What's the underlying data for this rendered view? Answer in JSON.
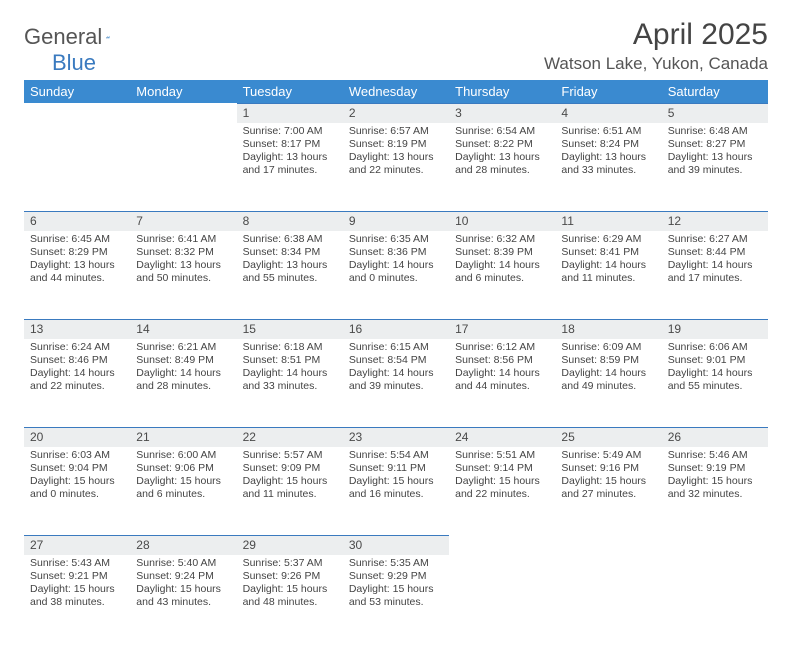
{
  "brand": {
    "name_a": "General",
    "name_b": "Blue"
  },
  "title": "April 2025",
  "location": "Watson Lake, Yukon, Canada",
  "colors": {
    "header_bg": "#3a8ad0",
    "header_text": "#ffffff",
    "daynum_bg": "#eceeef",
    "daynum_border": "#3a7abf",
    "text": "#444444",
    "brand_gray": "#6a6a6a",
    "brand_blue": "#3a7abf"
  },
  "weekdays": [
    "Sunday",
    "Monday",
    "Tuesday",
    "Wednesday",
    "Thursday",
    "Friday",
    "Saturday"
  ],
  "weeks": [
    [
      null,
      null,
      {
        "n": "1",
        "sr": "7:00 AM",
        "ss": "8:17 PM",
        "dl": "13 hours and 17 minutes."
      },
      {
        "n": "2",
        "sr": "6:57 AM",
        "ss": "8:19 PM",
        "dl": "13 hours and 22 minutes."
      },
      {
        "n": "3",
        "sr": "6:54 AM",
        "ss": "8:22 PM",
        "dl": "13 hours and 28 minutes."
      },
      {
        "n": "4",
        "sr": "6:51 AM",
        "ss": "8:24 PM",
        "dl": "13 hours and 33 minutes."
      },
      {
        "n": "5",
        "sr": "6:48 AM",
        "ss": "8:27 PM",
        "dl": "13 hours and 39 minutes."
      }
    ],
    [
      {
        "n": "6",
        "sr": "6:45 AM",
        "ss": "8:29 PM",
        "dl": "13 hours and 44 minutes."
      },
      {
        "n": "7",
        "sr": "6:41 AM",
        "ss": "8:32 PM",
        "dl": "13 hours and 50 minutes."
      },
      {
        "n": "8",
        "sr": "6:38 AM",
        "ss": "8:34 PM",
        "dl": "13 hours and 55 minutes."
      },
      {
        "n": "9",
        "sr": "6:35 AM",
        "ss": "8:36 PM",
        "dl": "14 hours and 0 minutes."
      },
      {
        "n": "10",
        "sr": "6:32 AM",
        "ss": "8:39 PM",
        "dl": "14 hours and 6 minutes."
      },
      {
        "n": "11",
        "sr": "6:29 AM",
        "ss": "8:41 PM",
        "dl": "14 hours and 11 minutes."
      },
      {
        "n": "12",
        "sr": "6:27 AM",
        "ss": "8:44 PM",
        "dl": "14 hours and 17 minutes."
      }
    ],
    [
      {
        "n": "13",
        "sr": "6:24 AM",
        "ss": "8:46 PM",
        "dl": "14 hours and 22 minutes."
      },
      {
        "n": "14",
        "sr": "6:21 AM",
        "ss": "8:49 PM",
        "dl": "14 hours and 28 minutes."
      },
      {
        "n": "15",
        "sr": "6:18 AM",
        "ss": "8:51 PM",
        "dl": "14 hours and 33 minutes."
      },
      {
        "n": "16",
        "sr": "6:15 AM",
        "ss": "8:54 PM",
        "dl": "14 hours and 39 minutes."
      },
      {
        "n": "17",
        "sr": "6:12 AM",
        "ss": "8:56 PM",
        "dl": "14 hours and 44 minutes."
      },
      {
        "n": "18",
        "sr": "6:09 AM",
        "ss": "8:59 PM",
        "dl": "14 hours and 49 minutes."
      },
      {
        "n": "19",
        "sr": "6:06 AM",
        "ss": "9:01 PM",
        "dl": "14 hours and 55 minutes."
      }
    ],
    [
      {
        "n": "20",
        "sr": "6:03 AM",
        "ss": "9:04 PM",
        "dl": "15 hours and 0 minutes."
      },
      {
        "n": "21",
        "sr": "6:00 AM",
        "ss": "9:06 PM",
        "dl": "15 hours and 6 minutes."
      },
      {
        "n": "22",
        "sr": "5:57 AM",
        "ss": "9:09 PM",
        "dl": "15 hours and 11 minutes."
      },
      {
        "n": "23",
        "sr": "5:54 AM",
        "ss": "9:11 PM",
        "dl": "15 hours and 16 minutes."
      },
      {
        "n": "24",
        "sr": "5:51 AM",
        "ss": "9:14 PM",
        "dl": "15 hours and 22 minutes."
      },
      {
        "n": "25",
        "sr": "5:49 AM",
        "ss": "9:16 PM",
        "dl": "15 hours and 27 minutes."
      },
      {
        "n": "26",
        "sr": "5:46 AM",
        "ss": "9:19 PM",
        "dl": "15 hours and 32 minutes."
      }
    ],
    [
      {
        "n": "27",
        "sr": "5:43 AM",
        "ss": "9:21 PM",
        "dl": "15 hours and 38 minutes."
      },
      {
        "n": "28",
        "sr": "5:40 AM",
        "ss": "9:24 PM",
        "dl": "15 hours and 43 minutes."
      },
      {
        "n": "29",
        "sr": "5:37 AM",
        "ss": "9:26 PM",
        "dl": "15 hours and 48 minutes."
      },
      {
        "n": "30",
        "sr": "5:35 AM",
        "ss": "9:29 PM",
        "dl": "15 hours and 53 minutes."
      },
      null,
      null,
      null
    ]
  ],
  "labels": {
    "sunrise": "Sunrise: ",
    "sunset": "Sunset: ",
    "daylight": "Daylight: "
  }
}
